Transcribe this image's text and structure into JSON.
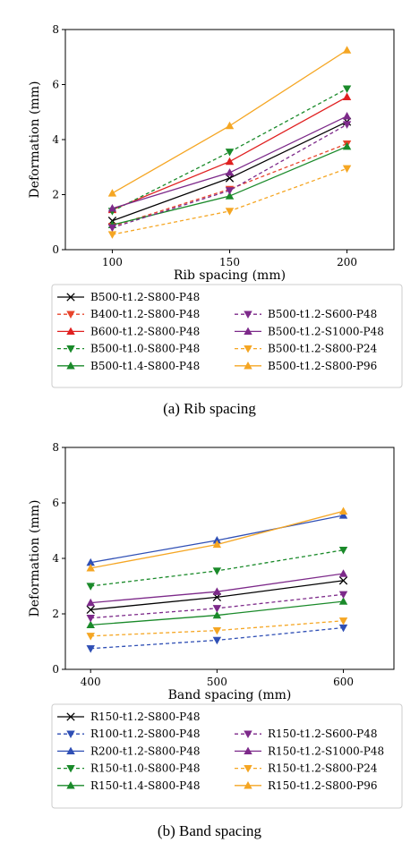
{
  "chart_data": [
    {
      "type": "line",
      "caption": "(a) Rib spacing",
      "xlabel": "Rib spacing (mm)",
      "ylabel": "Deformation (mm)",
      "x": [
        100,
        150,
        200
      ],
      "xticks": [
        "100",
        "150",
        "200"
      ],
      "xlim": [
        80,
        220
      ],
      "ylim": [
        0,
        8
      ],
      "yticks": [
        "0",
        "2",
        "4",
        "6",
        "8"
      ],
      "legend_position": "below",
      "series": [
        {
          "name": "B500-t1.2-S800-P48",
          "values": [
            1.05,
            2.6,
            4.65
          ],
          "color": "#000000",
          "marker": "x",
          "dash": false
        },
        {
          "name": "B400-t1.2-S800-P48",
          "values": [
            0.85,
            2.2,
            3.85
          ],
          "color": "#e8452c",
          "marker": "tri-down",
          "dash": true
        },
        {
          "name": "B600-t1.2-S800-P48",
          "values": [
            1.45,
            3.2,
            5.55
          ],
          "color": "#e02020",
          "marker": "tri-up",
          "dash": false
        },
        {
          "name": "B500-t1.0-S800-P48",
          "values": [
            1.4,
            3.55,
            5.85
          ],
          "color": "#1a8a2a",
          "marker": "tri-down",
          "dash": true
        },
        {
          "name": "B500-t1.4-S800-P48",
          "values": [
            0.9,
            1.95,
            3.75
          ],
          "color": "#1a8a2a",
          "marker": "tri-up",
          "dash": false
        },
        {
          "name": "B500-t1.2-S600-P48",
          "values": [
            0.8,
            2.15,
            4.55
          ],
          "color": "#7d2a8a",
          "marker": "tri-down",
          "dash": true
        },
        {
          "name": "B500-t1.2-S1000-P48",
          "values": [
            1.5,
            2.8,
            4.85
          ],
          "color": "#7d2a8a",
          "marker": "tri-up",
          "dash": false
        },
        {
          "name": "B500-t1.2-S800-P24",
          "values": [
            0.55,
            1.4,
            2.95
          ],
          "color": "#f5a623",
          "marker": "tri-down",
          "dash": true
        },
        {
          "name": "B500-t1.2-S800-P96",
          "values": [
            2.05,
            4.5,
            7.25
          ],
          "color": "#f5a623",
          "marker": "tri-up",
          "dash": false
        }
      ]
    },
    {
      "type": "line",
      "caption": "(b) Band spacing",
      "xlabel": "Band spacing (mm)",
      "ylabel": "Deformation (mm)",
      "x": [
        400,
        500,
        600
      ],
      "xticks": [
        "400",
        "500",
        "600"
      ],
      "xlim": [
        380,
        640
      ],
      "ylim": [
        0,
        8
      ],
      "yticks": [
        "0",
        "2",
        "4",
        "6",
        "8"
      ],
      "legend_position": "below",
      "series": [
        {
          "name": "R150-t1.2-S800-P48",
          "values": [
            2.15,
            2.6,
            3.2
          ],
          "color": "#000000",
          "marker": "x",
          "dash": false
        },
        {
          "name": "R100-t1.2-S800-P48",
          "values": [
            0.75,
            1.05,
            1.5
          ],
          "color": "#2f4fb5",
          "marker": "tri-down",
          "dash": true
        },
        {
          "name": "R200-t1.2-S800-P48",
          "values": [
            3.85,
            4.65,
            5.55
          ],
          "color": "#2f4fb5",
          "marker": "tri-up",
          "dash": false
        },
        {
          "name": "R150-t1.0-S800-P48",
          "values": [
            3.0,
            3.55,
            4.3
          ],
          "color": "#1a8a2a",
          "marker": "tri-down",
          "dash": true
        },
        {
          "name": "R150-t1.4-S800-P48",
          "values": [
            1.6,
            1.95,
            2.45
          ],
          "color": "#1a8a2a",
          "marker": "tri-up",
          "dash": false
        },
        {
          "name": "R150-t1.2-S600-P48",
          "values": [
            1.85,
            2.2,
            2.7
          ],
          "color": "#7d2a8a",
          "marker": "tri-down",
          "dash": true
        },
        {
          "name": "R150-t1.2-S1000-P48",
          "values": [
            2.4,
            2.8,
            3.45
          ],
          "color": "#7d2a8a",
          "marker": "tri-up",
          "dash": false
        },
        {
          "name": "R150-t1.2-S800-P24",
          "values": [
            1.2,
            1.4,
            1.75
          ],
          "color": "#f5a623",
          "marker": "tri-down",
          "dash": true
        },
        {
          "name": "R150-t1.2-S800-P96",
          "values": [
            3.65,
            4.5,
            5.7
          ],
          "color": "#f5a623",
          "marker": "tri-up",
          "dash": false
        }
      ]
    }
  ]
}
